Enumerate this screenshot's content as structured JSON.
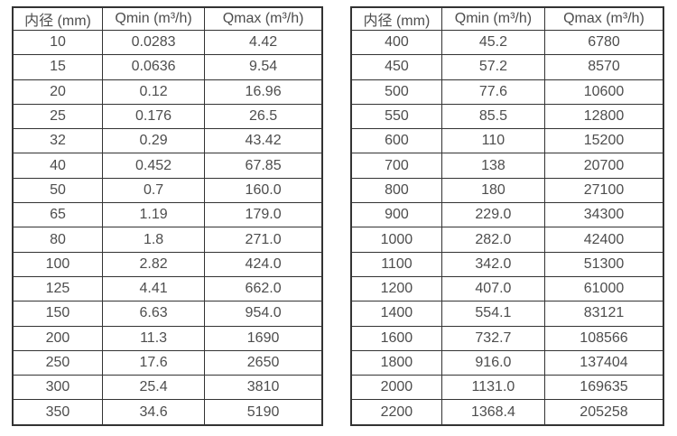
{
  "page": {
    "background_color": "#ffffff",
    "text_color": "#4d4d4d",
    "border_color": "#333333"
  },
  "tables": [
    {
      "name": "small-diameter-flow-table",
      "headers": [
        "内径 (mm)",
        "Qmin (m³/h)",
        "Qmax (m³/h)"
      ],
      "rows": [
        [
          "10",
          "0.0283",
          "4.42"
        ],
        [
          "15",
          "0.0636",
          "9.54"
        ],
        [
          "20",
          "0.12",
          "16.96"
        ],
        [
          "25",
          "0.176",
          "26.5"
        ],
        [
          "32",
          "0.29",
          "43.42"
        ],
        [
          "40",
          "0.452",
          "67.85"
        ],
        [
          "50",
          "0.7",
          "160.0"
        ],
        [
          "65",
          "1.19",
          "179.0"
        ],
        [
          "80",
          "1.8",
          "271.0"
        ],
        [
          "100",
          "2.82",
          "424.0"
        ],
        [
          "125",
          "4.41",
          "662.0"
        ],
        [
          "150",
          "6.63",
          "954.0"
        ],
        [
          "200",
          "11.3",
          "1690"
        ],
        [
          "250",
          "17.6",
          "2650"
        ],
        [
          "300",
          "25.4",
          "3810"
        ],
        [
          "350",
          "34.6",
          "5190"
        ]
      ]
    },
    {
      "name": "large-diameter-flow-table",
      "headers": [
        "内径 (mm)",
        "Qmin (m³/h)",
        "Qmax (m³/h)"
      ],
      "rows": [
        [
          "400",
          "45.2",
          "6780"
        ],
        [
          "450",
          "57.2",
          "8570"
        ],
        [
          "500",
          "77.6",
          "10600"
        ],
        [
          "550",
          "85.5",
          "12800"
        ],
        [
          "600",
          "110",
          "15200"
        ],
        [
          "700",
          "138",
          "20700"
        ],
        [
          "800",
          "180",
          "27100"
        ],
        [
          "900",
          "229.0",
          "34300"
        ],
        [
          "1000",
          "282.0",
          "42400"
        ],
        [
          "1100",
          "342.0",
          "51300"
        ],
        [
          "1200",
          "407.0",
          "61000"
        ],
        [
          "1400",
          "554.1",
          "83121"
        ],
        [
          "1600",
          "732.7",
          "108566"
        ],
        [
          "1800",
          "916.0",
          "137404"
        ],
        [
          "2000",
          "1131.0",
          "169635"
        ],
        [
          "2200",
          "1368.4",
          "205258"
        ]
      ]
    }
  ]
}
